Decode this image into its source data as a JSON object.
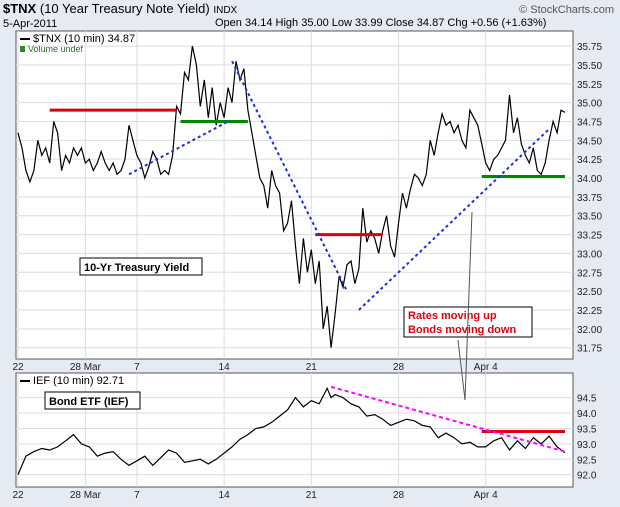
{
  "header": {
    "symbol": "$TNX",
    "description": "(10 Year Treasury Note Yield)",
    "exchange": "INDX",
    "date": "5-Apr-2011",
    "ohlc": "Open 34.14  High 35.00  Low 33.99  Close 34.87  Chg +0.56 (+1.63%)",
    "credit": "© StockCharts.com"
  },
  "chart_data": [
    {
      "type": "line",
      "legend": [
        "$TNX (10 min) 34.87",
        "Volume undef"
      ],
      "ylim": [
        31.6,
        35.95
      ],
      "yticks": [
        "35.75",
        "35.50",
        "35.25",
        "35.00",
        "34.75",
        "34.50",
        "34.25",
        "34.00",
        "33.75",
        "33.50",
        "33.25",
        "33.00",
        "32.75",
        "32.50",
        "32.25",
        "32.00",
        "31.75"
      ],
      "xticks": [
        "22",
        "28 Mar",
        "7",
        "14",
        "21",
        "28",
        "Apr 4"
      ],
      "series": [
        {
          "values": [
            [
              0,
              34.6
            ],
            [
              1,
              34.4
            ],
            [
              2,
              34.1
            ],
            [
              3,
              33.95
            ],
            [
              4,
              34.1
            ],
            [
              5,
              34.5
            ],
            [
              6,
              34.3
            ],
            [
              7,
              34.4
            ],
            [
              8,
              34.2
            ],
            [
              9,
              34.75
            ],
            [
              10,
              34.6
            ],
            [
              11,
              34.1
            ],
            [
              12,
              34.3
            ],
            [
              13,
              34.2
            ],
            [
              14,
              34.4
            ],
            [
              15,
              34.3
            ],
            [
              16,
              34.4
            ],
            [
              17,
              34.2
            ],
            [
              18,
              34.25
            ],
            [
              19,
              34.1
            ],
            [
              20,
              34.2
            ],
            [
              21,
              34.35
            ],
            [
              22,
              34.2
            ],
            [
              23,
              34.1
            ],
            [
              24,
              34.2
            ],
            [
              25,
              34.05
            ],
            [
              26,
              34.1
            ],
            [
              27,
              34.25
            ],
            [
              28,
              34.7
            ],
            [
              29,
              34.5
            ],
            [
              30,
              34.3
            ],
            [
              31,
              34.2
            ],
            [
              32,
              34.0
            ],
            [
              33,
              34.15
            ],
            [
              34,
              34.35
            ],
            [
              35,
              34.25
            ],
            [
              36,
              34.05
            ],
            [
              37,
              34.1
            ],
            [
              38,
              34.05
            ],
            [
              39,
              34.3
            ],
            [
              40,
              34.95
            ],
            [
              41,
              34.85
            ],
            [
              42,
              35.4
            ],
            [
              43,
              35.3
            ],
            [
              44,
              35.75
            ],
            [
              45,
              35.5
            ],
            [
              46,
              34.95
            ],
            [
              47,
              35.3
            ],
            [
              48,
              34.8
            ],
            [
              49,
              35.2
            ],
            [
              50,
              34.7
            ],
            [
              51,
              35.0
            ],
            [
              52,
              34.8
            ],
            [
              53,
              35.2
            ],
            [
              54,
              35.0
            ],
            [
              55,
              35.55
            ],
            [
              56,
              35.3
            ],
            [
              57,
              35.45
            ],
            [
              58,
              34.9
            ],
            [
              59,
              34.6
            ],
            [
              60,
              34.3
            ],
            [
              61,
              34.0
            ],
            [
              62,
              33.9
            ],
            [
              63,
              33.6
            ],
            [
              64,
              34.1
            ],
            [
              65,
              33.9
            ],
            [
              66,
              33.8
            ],
            [
              67,
              33.3
            ],
            [
              68,
              33.4
            ],
            [
              69,
              33.7
            ],
            [
              70,
              33.1
            ],
            [
              71,
              32.6
            ],
            [
              72,
              33.2
            ],
            [
              73,
              32.75
            ],
            [
              74,
              33.05
            ],
            [
              75,
              32.6
            ],
            [
              76,
              32.9
            ],
            [
              77,
              32.0
            ],
            [
              78,
              32.3
            ],
            [
              79,
              31.75
            ],
            [
              80,
              32.2
            ],
            [
              81,
              32.7
            ],
            [
              82,
              32.55
            ],
            [
              83,
              32.85
            ],
            [
              84,
              32.9
            ],
            [
              85,
              32.6
            ],
            [
              86,
              32.8
            ],
            [
              87,
              33.6
            ],
            [
              88,
              33.15
            ],
            [
              89,
              33.3
            ],
            [
              90,
              33.2
            ],
            [
              91,
              33.0
            ],
            [
              92,
              33.3
            ],
            [
              93,
              33.5
            ],
            [
              94,
              33.1
            ],
            [
              95,
              32.95
            ],
            [
              96,
              33.4
            ],
            [
              97,
              33.8
            ],
            [
              98,
              33.6
            ],
            [
              99,
              33.85
            ],
            [
              100,
              34.05
            ],
            [
              101,
              34.0
            ],
            [
              102,
              33.9
            ],
            [
              103,
              34.05
            ],
            [
              104,
              34.5
            ],
            [
              105,
              34.3
            ],
            [
              106,
              34.6
            ],
            [
              107,
              34.85
            ],
            [
              108,
              34.7
            ],
            [
              109,
              34.75
            ],
            [
              110,
              34.6
            ],
            [
              111,
              34.7
            ],
            [
              112,
              34.5
            ],
            [
              113,
              34.4
            ],
            [
              114,
              34.9
            ],
            [
              115,
              34.8
            ],
            [
              116,
              34.7
            ],
            [
              117,
              34.45
            ],
            [
              118,
              34.2
            ],
            [
              119,
              34.1
            ],
            [
              120,
              34.25
            ],
            [
              121,
              34.3
            ],
            [
              122,
              34.4
            ],
            [
              123,
              34.5
            ],
            [
              124,
              35.1
            ],
            [
              125,
              34.6
            ],
            [
              126,
              34.8
            ],
            [
              127,
              34.45
            ],
            [
              128,
              34.3
            ],
            [
              129,
              34.2
            ],
            [
              130,
              34.4
            ],
            [
              131,
              34.1
            ],
            [
              132,
              34.05
            ],
            [
              133,
              34.2
            ],
            [
              134,
              34.5
            ],
            [
              135,
              34.75
            ],
            [
              136,
              34.6
            ],
            [
              137,
              34.9
            ],
            [
              138,
              34.87
            ]
          ]
        }
      ],
      "support_resistance_red": [
        {
          "price": 34.9,
          "from": 8,
          "to": 40
        },
        {
          "price": 33.25,
          "from": 75,
          "to": 92
        }
      ],
      "support_resistance_green": [
        {
          "price": 34.75,
          "from": 41,
          "to": 58
        },
        {
          "price": 34.02,
          "from": 117,
          "to": 138
        }
      ],
      "trendlines_blue": [
        {
          "x1": 28,
          "y1": 34.05,
          "x2": 53,
          "y2": 34.75
        },
        {
          "x1": 54,
          "y1": 35.55,
          "x2": 83,
          "y2": 32.5
        },
        {
          "x1": 86,
          "y1": 32.25,
          "x2": 134,
          "y2": 34.65
        }
      ],
      "annotations": {
        "label": "10-Yr Treasury Yield",
        "rates_line1": "Rates moving up",
        "rates_line2": "Bonds moving down"
      }
    },
    {
      "type": "line",
      "legend": [
        "IEF (10 min) 92.71"
      ],
      "label": "Bond ETF (IEF)",
      "ylim": [
        91.6,
        95.3
      ],
      "yticks": [
        "94.5",
        "94.0",
        "93.5",
        "93.0",
        "92.5",
        "92.0"
      ],
      "xticks": [
        "22",
        "28 Mar",
        "7",
        "14",
        "21",
        "28",
        "Apr 4"
      ],
      "series": [
        {
          "values": [
            [
              0,
              92.0
            ],
            [
              2,
              92.6
            ],
            [
              4,
              92.75
            ],
            [
              6,
              92.85
            ],
            [
              8,
              92.8
            ],
            [
              10,
              92.9
            ],
            [
              12,
              93.1
            ],
            [
              14,
              93.3
            ],
            [
              16,
              93.0
            ],
            [
              18,
              92.9
            ],
            [
              20,
              92.6
            ],
            [
              22,
              92.7
            ],
            [
              24,
              92.75
            ],
            [
              26,
              92.5
            ],
            [
              28,
              92.3
            ],
            [
              30,
              92.45
            ],
            [
              32,
              92.6
            ],
            [
              34,
              92.3
            ],
            [
              36,
              92.55
            ],
            [
              38,
              92.8
            ],
            [
              40,
              92.7
            ],
            [
              42,
              92.4
            ],
            [
              44,
              92.45
            ],
            [
              46,
              92.5
            ],
            [
              48,
              92.35
            ],
            [
              50,
              92.5
            ],
            [
              52,
              92.7
            ],
            [
              54,
              92.9
            ],
            [
              56,
              93.15
            ],
            [
              58,
              93.3
            ],
            [
              60,
              93.5
            ],
            [
              62,
              93.55
            ],
            [
              64,
              93.7
            ],
            [
              66,
              93.9
            ],
            [
              68,
              94.1
            ],
            [
              70,
              94.5
            ],
            [
              72,
              94.2
            ],
            [
              74,
              94.4
            ],
            [
              76,
              94.3
            ],
            [
              78,
              94.8
            ],
            [
              79,
              94.5
            ],
            [
              80,
              94.6
            ],
            [
              82,
              94.5
            ],
            [
              84,
              94.3
            ],
            [
              86,
              94.2
            ],
            [
              88,
              93.9
            ],
            [
              90,
              93.95
            ],
            [
              92,
              93.8
            ],
            [
              94,
              93.6
            ],
            [
              96,
              93.7
            ],
            [
              98,
              93.8
            ],
            [
              100,
              93.75
            ],
            [
              102,
              93.6
            ],
            [
              104,
              93.55
            ],
            [
              106,
              93.2
            ],
            [
              108,
              93.35
            ],
            [
              110,
              93.2
            ],
            [
              112,
              93.0
            ],
            [
              114,
              93.05
            ],
            [
              116,
              92.9
            ],
            [
              118,
              92.9
            ],
            [
              120,
              93.1
            ],
            [
              122,
              93.2
            ],
            [
              124,
              92.8
            ],
            [
              126,
              93.1
            ],
            [
              128,
              92.85
            ],
            [
              130,
              93.2
            ],
            [
              132,
              93.0
            ],
            [
              134,
              93.25
            ],
            [
              136,
              92.9
            ],
            [
              138,
              92.71
            ]
          ]
        }
      ],
      "resistance_red": {
        "price": 93.4,
        "from": 117,
        "to": 138
      },
      "trendline_magenta": {
        "x1": 79,
        "y1": 94.85,
        "x2": 138,
        "y2": 92.75
      }
    }
  ]
}
